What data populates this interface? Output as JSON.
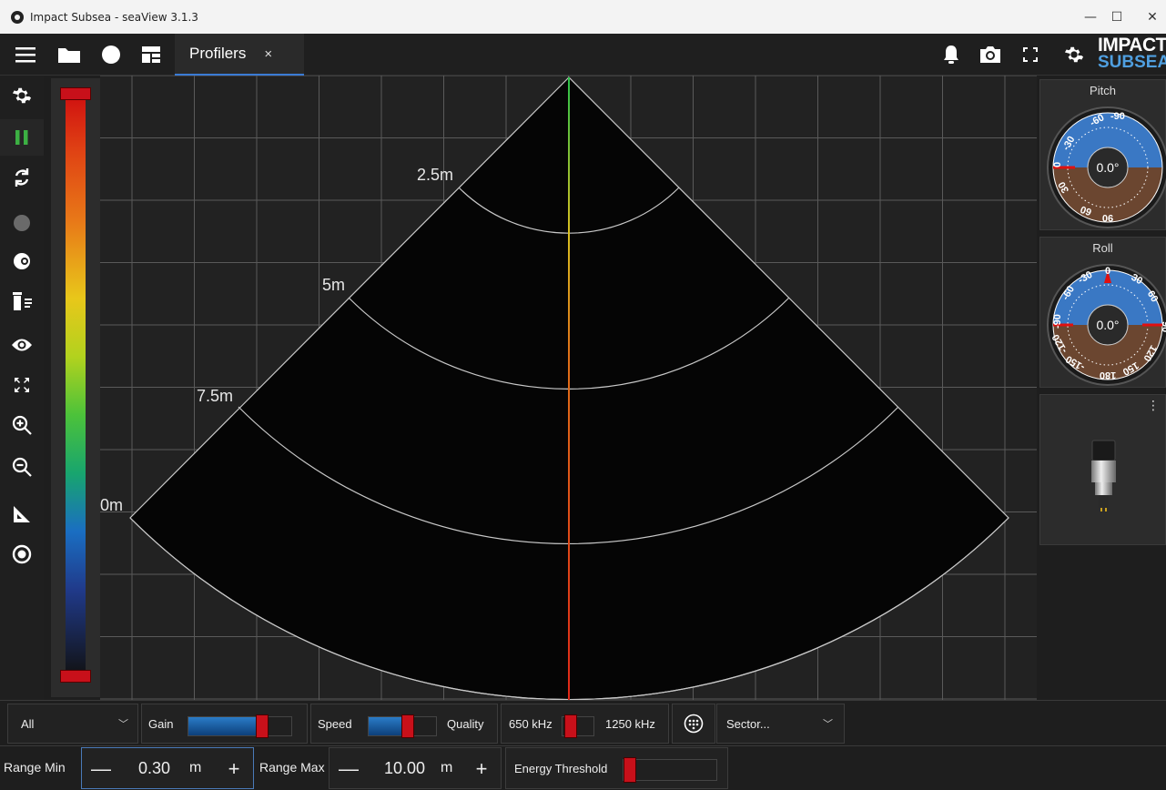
{
  "window": {
    "title": "Impact Subsea - seaView 3.1.3",
    "minimize": "—",
    "maximize": "☐",
    "close": "✕"
  },
  "toolbar": {
    "left_icons": [
      "menu-icon",
      "folder-icon",
      "record-icon",
      "layout-icon"
    ],
    "tab_label": "Profilers",
    "tab_close": "×",
    "right_icons": [
      "bell-icon",
      "camera-icon",
      "fullscreen-icon",
      "gear-icon"
    ],
    "logo_line1": "IMPACT",
    "logo_line2": "SUBSEA"
  },
  "sidebar": {
    "icons": [
      "gear-icon",
      "pause-icon",
      "refresh-icon",
      "record-dot-icon",
      "palette-icon",
      "clear-list-icon",
      "eye-icon",
      "fit-icon",
      "zoom-in-icon",
      "zoom-out-icon",
      "measure-icon",
      "target-icon"
    ],
    "pause_color": "#3cb043"
  },
  "colorbar": {
    "top_handle": 1.0,
    "bottom_handle": 0.0
  },
  "sonar": {
    "range_labels": [
      "2.5m",
      "5m",
      "7.5m",
      "0m"
    ],
    "beam_color": "#e04020"
  },
  "right_panel": {
    "pitch": {
      "label": "Pitch",
      "value": "0.0°",
      "ticks": [
        "-90",
        "-60",
        "-30",
        "0",
        "30",
        "60",
        "90"
      ]
    },
    "roll": {
      "label": "Roll",
      "value": "0.0°",
      "ticks": [
        "0",
        "30",
        "60",
        "90",
        "120",
        "150",
        "180",
        "-150",
        "-120",
        "-90",
        "-60",
        "-30"
      ]
    },
    "device_menu": "⋮"
  },
  "controls_row1": {
    "filter_select": "All",
    "gain_label": "Gain",
    "gain_level": 0.72,
    "speed_label": "Speed",
    "quality_label": "Quality",
    "speed_quality_level": 0.58,
    "freq_low": "650 kHz",
    "freq_high": "1250 kHz",
    "freq_level": 0.25,
    "mode_select": "Sector..."
  },
  "controls_row2": {
    "range_min_label": "Range Min",
    "range_min_value": "0.30",
    "range_min_unit": "m",
    "range_max_label": "Range Max",
    "range_max_value": "10.00",
    "range_max_unit": "m",
    "minus": "—",
    "plus": "+",
    "energy_label": "Energy Threshold",
    "energy_level": 0.05
  }
}
